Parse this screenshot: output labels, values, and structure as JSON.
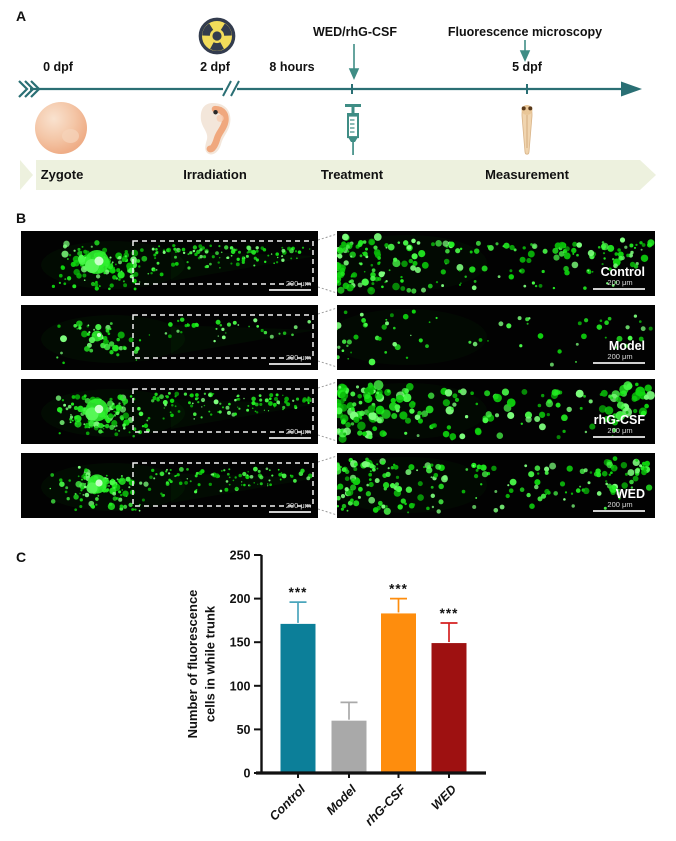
{
  "figure_panels": [
    "A",
    "B",
    "C"
  ],
  "colors": {
    "timeline_teal": "#2a6f74",
    "arrow_teal": "#3f8d85",
    "stage_band_green": "#edf1de",
    "radiation_yellow": "#f2dc5a",
    "radiation_navy": "#333c4e",
    "fluorescence_green": "#22ee22",
    "bar_control": "#0c7f99",
    "bar_model": "#a9a9a9",
    "bar_rhgcsf": "#fe8d0d",
    "bar_wed": "#9e1111"
  },
  "panel_a": {
    "label": "A",
    "steps": [
      {
        "time": "0 dpf",
        "stage": "Zygote",
        "icon": "zygote-icon"
      },
      {
        "time": "2 dpf",
        "stage": "Irradiation",
        "icon": "embryo-icon",
        "hazard_icon": "radiation-icon"
      },
      {
        "time": "8 hours",
        "stage": "Treatment",
        "icon": "syringe-icon",
        "annotation": "WED/rhG-CSF"
      },
      {
        "time": "5 dpf",
        "stage": "Measurement",
        "icon": "zebrafish-larva-icon",
        "annotation": "Fluorescence microscopy"
      }
    ]
  },
  "panel_b": {
    "label": "B",
    "scale_bar_text": "200 μm",
    "rows": [
      {
        "group": "Control",
        "fluorescence_density": "high"
      },
      {
        "group": "Model",
        "fluorescence_density": "low"
      },
      {
        "group": "rhG-CSF",
        "fluorescence_density": "high"
      },
      {
        "group": "WED",
        "fluorescence_density": "medium-high"
      }
    ]
  },
  "panel_c": {
    "label": "C"
  },
  "chart_data": {
    "type": "bar",
    "title": "",
    "categories": [
      "Control",
      "Model",
      "rhG-CSF",
      "WED"
    ],
    "values": [
      171,
      60,
      183,
      149
    ],
    "errors": [
      25,
      21,
      17,
      23
    ],
    "significance": [
      "***",
      null,
      "***",
      "***"
    ],
    "bar_colors": [
      "#0c7f99",
      "#a9a9a9",
      "#fe8d0d",
      "#9e1111"
    ],
    "error_colors": [
      "#4aa5bc",
      "#a9a9a9",
      "#fe8d0d",
      "#d42020"
    ],
    "xlabel": "",
    "ylabel": "Number of fluorescence cells in while trunk",
    "ylabel_lines": [
      "Number of fluorescence",
      "cells in while trunk"
    ],
    "ylim": [
      0,
      250
    ],
    "yticks": [
      0,
      50,
      100,
      150,
      200,
      250
    ],
    "grid": false,
    "legend": null
  }
}
